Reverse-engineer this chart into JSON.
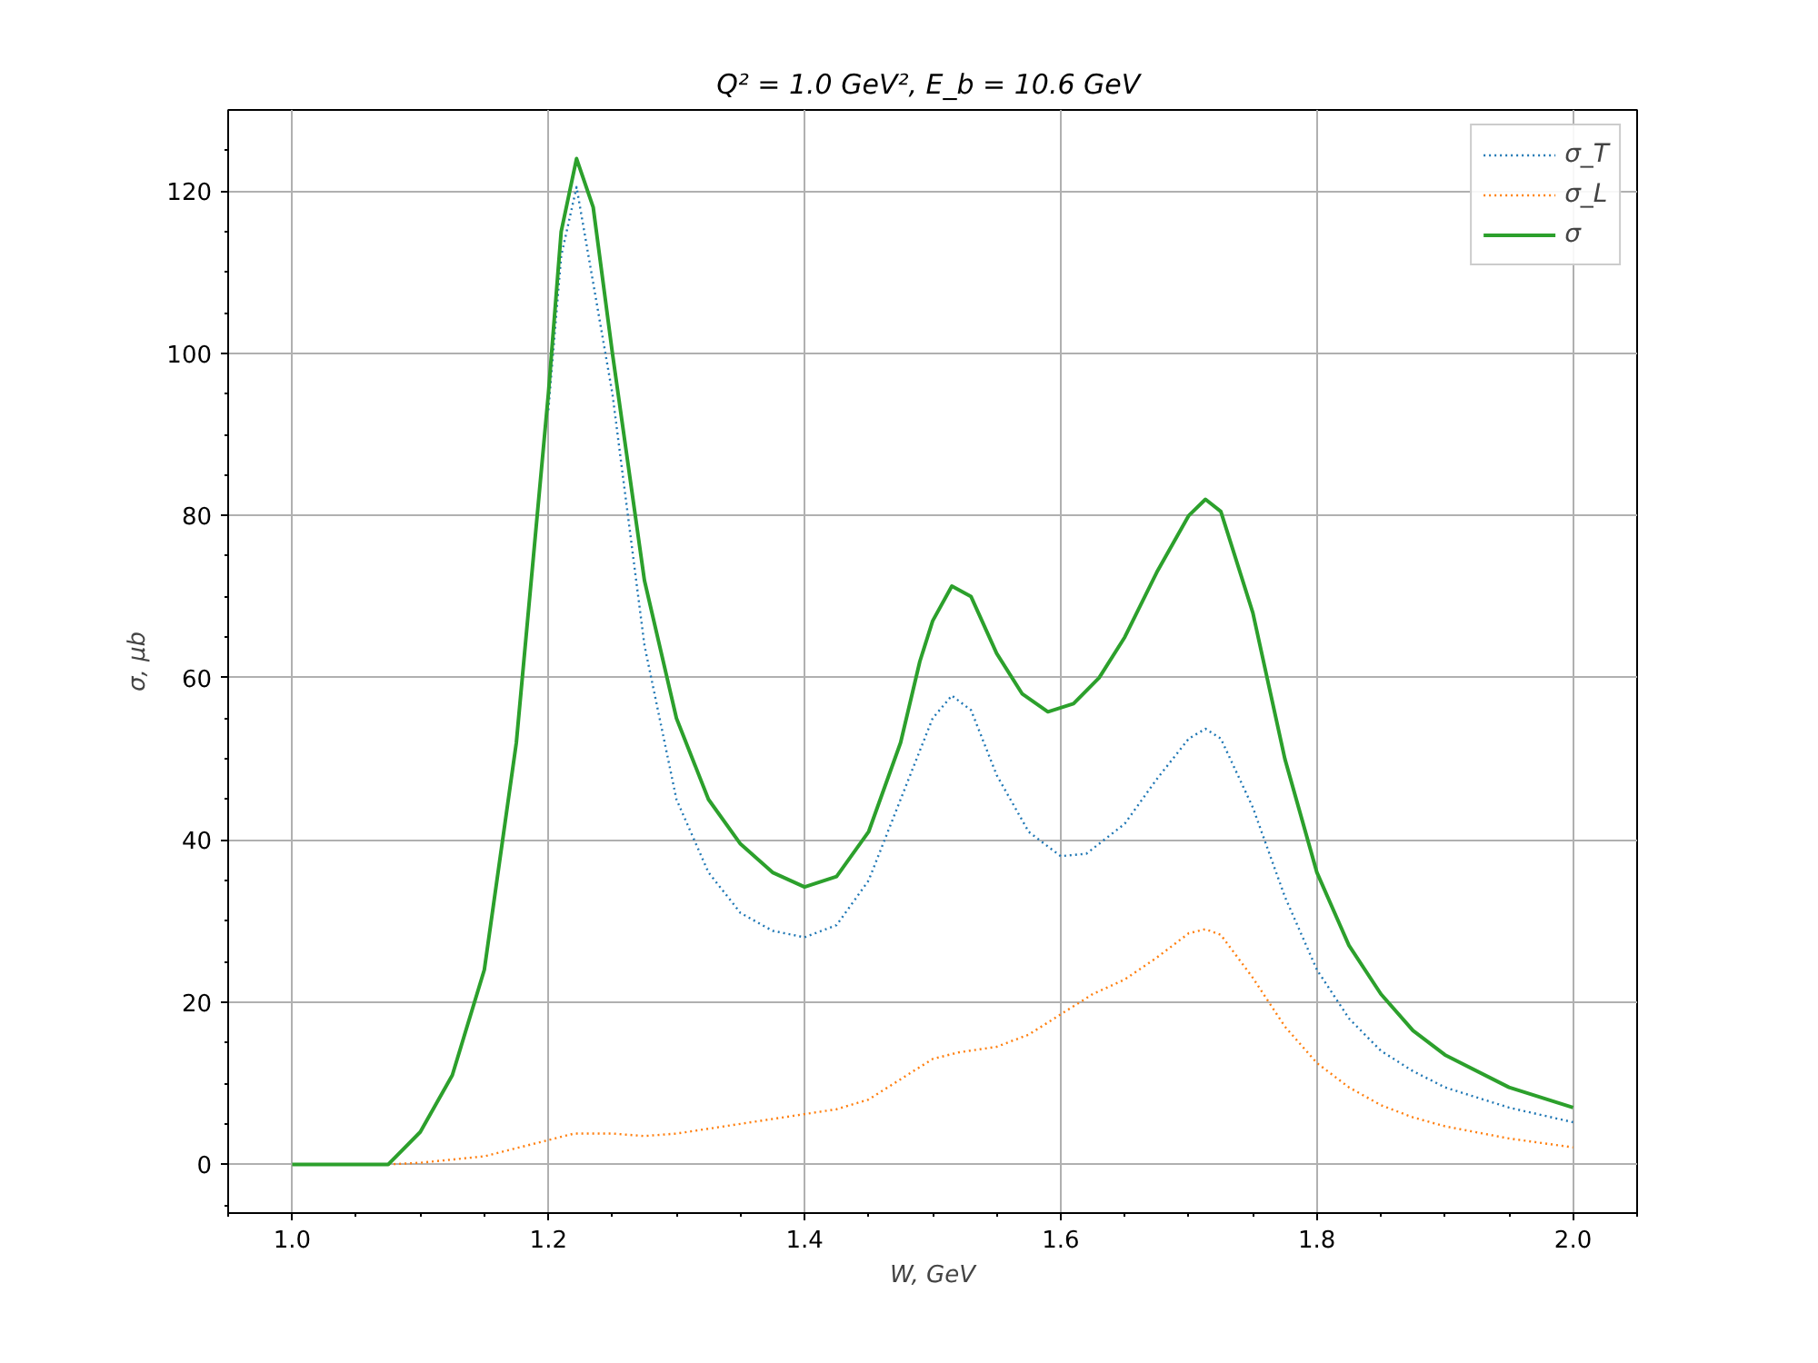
{
  "chart_data": {
    "type": "line",
    "title": "Q² = 1.0 GeV²,  E_b = 10.6 GeV",
    "xlabel": "W, GeV",
    "ylabel": "σ, μb",
    "xlim": [
      0.95,
      2.05
    ],
    "ylim": [
      -6,
      130
    ],
    "xticks": [
      {
        "value": 0.95,
        "label": null
      },
      {
        "value": 1.0,
        "label": "1.0"
      },
      {
        "value": 1.05,
        "label": null
      },
      {
        "value": 1.1,
        "label": null
      },
      {
        "value": 1.15,
        "label": null
      },
      {
        "value": 1.2,
        "label": "1.2"
      },
      {
        "value": 1.25,
        "label": null
      },
      {
        "value": 1.3,
        "label": null
      },
      {
        "value": 1.35,
        "label": null
      },
      {
        "value": 1.4,
        "label": "1.4"
      },
      {
        "value": 1.45,
        "label": null
      },
      {
        "value": 1.5,
        "label": null
      },
      {
        "value": 1.55,
        "label": null
      },
      {
        "value": 1.6,
        "label": "1.6"
      },
      {
        "value": 1.65,
        "label": null
      },
      {
        "value": 1.7,
        "label": null
      },
      {
        "value": 1.75,
        "label": null
      },
      {
        "value": 1.8,
        "label": "1.8"
      },
      {
        "value": 1.85,
        "label": null
      },
      {
        "value": 1.9,
        "label": null
      },
      {
        "value": 1.95,
        "label": null
      },
      {
        "value": 2.0,
        "label": "2.0"
      },
      {
        "value": 2.05,
        "label": null
      }
    ],
    "yticks": [
      {
        "value": -5,
        "label": null
      },
      0,
      {
        "value": 5,
        "label": null
      },
      {
        "value": 10,
        "label": null
      },
      {
        "value": 15,
        "label": null
      },
      20,
      {
        "value": 25,
        "label": null
      },
      {
        "value": 30,
        "label": null
      },
      {
        "value": 35,
        "label": null
      },
      40,
      {
        "value": 45,
        "label": null
      },
      {
        "value": 50,
        "label": null
      },
      {
        "value": 55,
        "label": null
      },
      60,
      {
        "value": 65,
        "label": null
      },
      {
        "value": 70,
        "label": null
      },
      {
        "value": 75,
        "label": null
      },
      80,
      {
        "value": 85,
        "label": null
      },
      {
        "value": 90,
        "label": null
      },
      {
        "value": 95,
        "label": null
      },
      100,
      {
        "value": 105,
        "label": null
      },
      {
        "value": 110,
        "label": null
      },
      {
        "value": 115,
        "label": null
      },
      120,
      {
        "value": 125,
        "label": null
      }
    ],
    "grid": true,
    "legend": "top right",
    "series": [
      {
        "name": "σ_T",
        "color": "#1f77b4",
        "line_style": "dotted",
        "x": [
          1.2,
          1.21,
          1.222,
          1.25,
          1.275,
          1.3,
          1.325,
          1.35,
          1.375,
          1.4,
          1.425,
          1.45,
          1.475,
          1.5,
          1.515,
          1.53,
          1.55,
          1.575,
          1.6,
          1.62,
          1.65,
          1.675,
          1.7,
          1.713,
          1.725,
          1.75,
          1.775,
          1.8,
          1.825,
          1.85,
          1.875,
          1.9,
          1.95,
          2.0
        ],
        "values": [
          93,
          112,
          120.5,
          95,
          64,
          45,
          36,
          31,
          28.8,
          28,
          29.5,
          35,
          45,
          55,
          57.8,
          56,
          48,
          41,
          38,
          38.3,
          42,
          47.5,
          52.5,
          53.7,
          52.5,
          44,
          33,
          24,
          18,
          14,
          11.5,
          9.5,
          7,
          5.2
        ]
      },
      {
        "name": "σ_L",
        "color": "#ff7f0e",
        "line_style": "dotted",
        "x": [
          1.075,
          1.1,
          1.15,
          1.2,
          1.22,
          1.25,
          1.275,
          1.3,
          1.35,
          1.4,
          1.425,
          1.45,
          1.475,
          1.5,
          1.52,
          1.55,
          1.575,
          1.6,
          1.625,
          1.65,
          1.675,
          1.7,
          1.713,
          1.725,
          1.75,
          1.775,
          1.8,
          1.825,
          1.85,
          1.875,
          1.9,
          1.95,
          2.0
        ],
        "values": [
          0,
          0.2,
          1,
          3,
          3.8,
          3.8,
          3.5,
          3.8,
          5,
          6.2,
          6.8,
          8,
          10.5,
          13,
          13.8,
          14.5,
          16,
          18.5,
          21,
          22.8,
          25.5,
          28.5,
          29,
          28.3,
          23,
          17,
          12.5,
          9.5,
          7.3,
          5.8,
          4.7,
          3.2,
          2.1
        ]
      },
      {
        "name": "σ",
        "color": "#2ca02c",
        "line_style": "solid",
        "x": [
          1.0,
          1.075,
          1.1,
          1.125,
          1.15,
          1.175,
          1.2,
          1.21,
          1.222,
          1.235,
          1.25,
          1.275,
          1.3,
          1.325,
          1.35,
          1.375,
          1.4,
          1.425,
          1.45,
          1.475,
          1.49,
          1.5,
          1.515,
          1.53,
          1.55,
          1.57,
          1.59,
          1.61,
          1.63,
          1.65,
          1.675,
          1.7,
          1.713,
          1.725,
          1.75,
          1.775,
          1.8,
          1.825,
          1.85,
          1.875,
          1.9,
          1.95,
          2.0
        ],
        "values": [
          0,
          0,
          4,
          11,
          24,
          52,
          95,
          115,
          124,
          118,
          100,
          72,
          55,
          45,
          39.5,
          36,
          34.2,
          35.5,
          41,
          52,
          62,
          67,
          71.3,
          70,
          63,
          58,
          55.8,
          56.8,
          60,
          65,
          73,
          80,
          82,
          80.5,
          68,
          50,
          36,
          27,
          21,
          16.5,
          13.5,
          9.5,
          7
        ]
      }
    ]
  }
}
